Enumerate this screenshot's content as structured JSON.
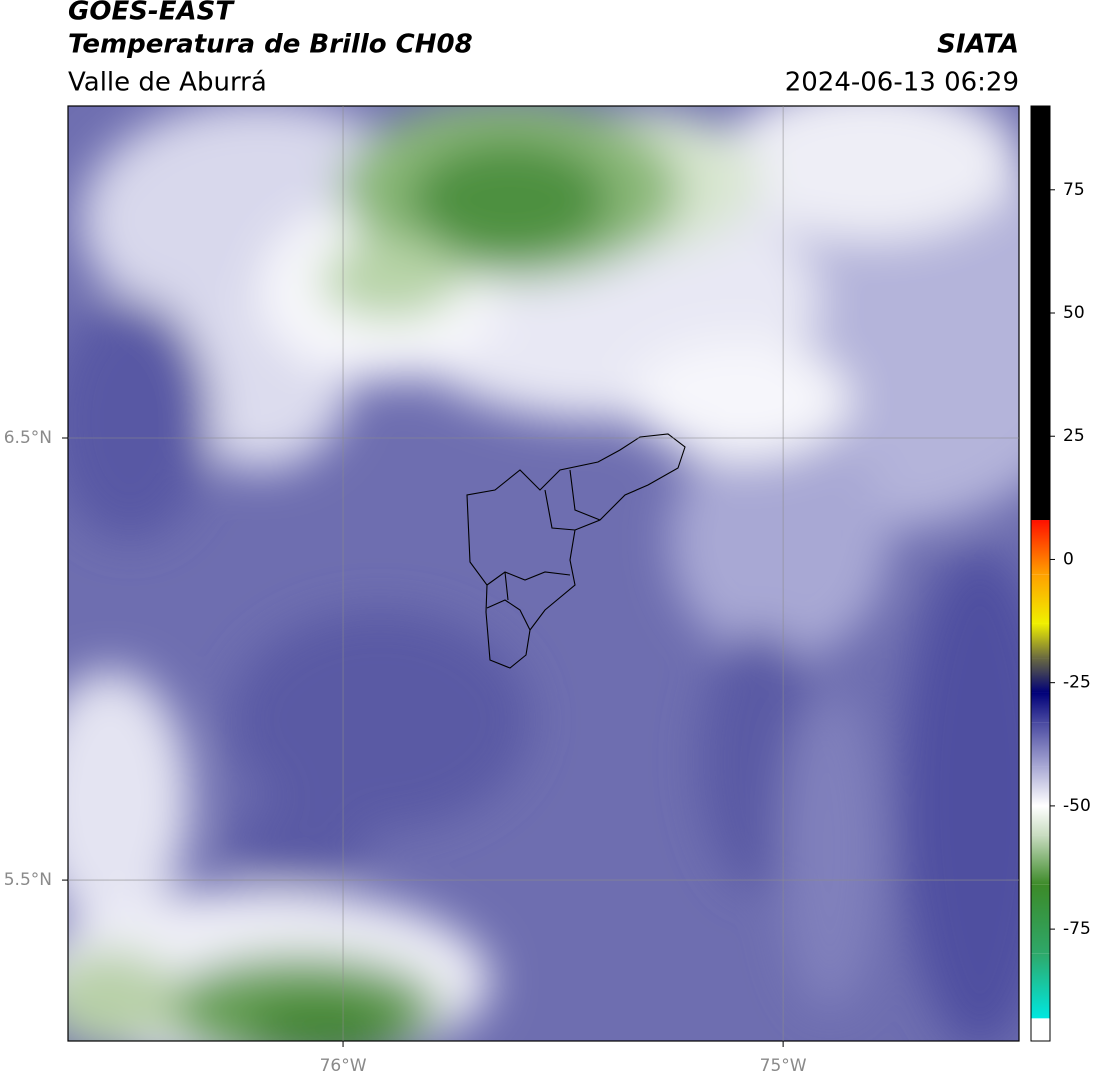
{
  "header": {
    "title": "GOES-EAST",
    "subtitle": "Temperatura de Brillo CH08",
    "region": "Valle de Aburrá",
    "source": "SIATA",
    "timestamp": "2024-06-13 06:29"
  },
  "map": {
    "xlim": [
      -76.625,
      -74.464
    ],
    "ylim": [
      5.136,
      7.251
    ],
    "xticks": [
      {
        "value": -76,
        "label": "76°W"
      },
      {
        "value": -75,
        "label": "75°W"
      }
    ],
    "yticks": [
      {
        "value": 6.5,
        "label": "6.5°N"
      },
      {
        "value": 5.5,
        "label": "5.5°N"
      }
    ],
    "grid": true
  },
  "colorbar": {
    "lim": [
      -97.7,
      92
    ],
    "ticks": [
      -75,
      -50,
      -25,
      0,
      25,
      50,
      75
    ],
    "stops": [
      {
        "value": -97.7,
        "color": "#ffffff"
      },
      {
        "value": -93.1,
        "color": "#ffffff"
      },
      {
        "value": -93.1,
        "color": "#00e8e0"
      },
      {
        "value": -80,
        "color": "#2ea86a"
      },
      {
        "value": -66,
        "color": "#3c8a28"
      },
      {
        "value": -56,
        "color": "#c8dcc0"
      },
      {
        "value": -50,
        "color": "#ffffff"
      },
      {
        "value": -42,
        "color": "#a8a8d4"
      },
      {
        "value": -33,
        "color": "#4848a0"
      },
      {
        "value": -27,
        "color": "#000078"
      },
      {
        "value": -20,
        "color": "#6a6a40"
      },
      {
        "value": -13,
        "color": "#f0f000"
      },
      {
        "value": -3,
        "color": "#ffa000"
      },
      {
        "value": 8,
        "color": "#ff1000"
      },
      {
        "value": 8,
        "color": "#000000"
      },
      {
        "value": 92,
        "color": "#000000"
      }
    ]
  }
}
